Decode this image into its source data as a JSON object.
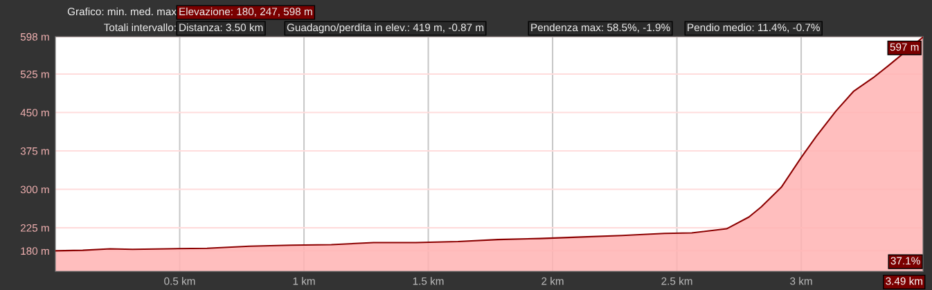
{
  "chart_data": {
    "type": "area",
    "x": [
      0,
      0.11,
      0.22,
      0.31,
      0.45,
      0.61,
      0.78,
      0.95,
      1.11,
      1.28,
      1.45,
      1.62,
      1.78,
      1.95,
      2.12,
      2.28,
      2.45,
      2.56,
      2.7,
      2.79,
      2.84,
      2.92,
      3.0,
      3.06,
      3.14,
      3.21,
      3.29,
      3.35,
      3.4,
      3.49
    ],
    "series": [
      {
        "color": "#8b0000",
        "values": [
          180,
          181,
          184,
          183,
          184,
          185,
          189,
          191,
          192,
          196,
          196,
          198,
          202,
          204,
          207,
          210,
          214,
          215,
          223,
          246,
          266,
          304,
          362,
          403,
          453,
          491,
          518,
          541,
          561,
          597
        ]
      }
    ],
    "xlim": [
      0,
      3.49
    ],
    "ylim": [
      140,
      598
    ],
    "xticks": [
      {
        "value": 0.5,
        "label": "0.5 km"
      },
      {
        "value": 1,
        "label": "1 km"
      },
      {
        "value": 1.5,
        "label": "1.5 km"
      },
      {
        "value": 2,
        "label": "2 km"
      },
      {
        "value": 2.5,
        "label": "2.5 km"
      },
      {
        "value": 3,
        "label": "3 km"
      },
      {
        "value": 3.49,
        "label": "3.49 km"
      }
    ],
    "yticks": [
      {
        "value": 180,
        "label": "180 m"
      },
      {
        "value": 225,
        "label": "225 m"
      },
      {
        "value": 300,
        "label": "300 m"
      },
      {
        "value": 375,
        "label": "375 m"
      },
      {
        "value": 450,
        "label": "450 m"
      },
      {
        "value": 525,
        "label": "525 m"
      },
      {
        "value": 598,
        "label": "598 m"
      }
    ],
    "grid": true,
    "annotations": [
      "Grafico: min. med. max",
      "Elevazione: 180, 247, 598 m",
      "Totali intervallo:",
      "Distanza: 3.50 km",
      "Guadagno/perdita in elev.: 419 m, -0.87 m",
      "Pendenza max: 58.5%, -1.9%",
      "Pendio medio: 11.4%, -0.7%",
      {
        "text": "597 m",
        "x": 3.49,
        "y": 597
      },
      "37.1%"
    ]
  }
}
